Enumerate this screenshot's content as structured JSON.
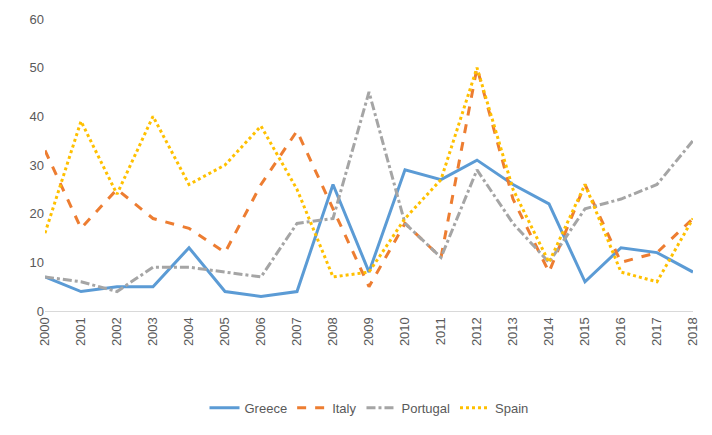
{
  "chart_data": {
    "type": "line",
    "categories": [
      "2000",
      "2001",
      "2002",
      "2003",
      "2004",
      "2005",
      "2006",
      "2007",
      "2008",
      "2009",
      "2010",
      "2011",
      "2012",
      "2013",
      "2014",
      "2015",
      "2016",
      "2017",
      "2018"
    ],
    "series": [
      {
        "name": "Greece",
        "color": "#5b9bd5",
        "line_style": "solid",
        "values": [
          7,
          4,
          5,
          5,
          13,
          4,
          3,
          4,
          26,
          8,
          29,
          27,
          31,
          26,
          22,
          6,
          13,
          12,
          8
        ]
      },
      {
        "name": "Italy",
        "color": "#ed7d31",
        "line_style": "dash",
        "values": [
          33,
          17,
          25,
          19,
          17,
          12,
          26,
          37,
          21,
          5,
          18,
          11,
          50,
          23,
          8,
          26,
          10,
          12,
          19
        ]
      },
      {
        "name": "Portugal",
        "color": "#a5a5a5",
        "line_style": "dashdot",
        "values": [
          7,
          6,
          4,
          9,
          9,
          8,
          7,
          18,
          19,
          45,
          18,
          11,
          29,
          18,
          10,
          21,
          23,
          26,
          35
        ]
      },
      {
        "name": "Spain",
        "color": "#ffc000",
        "line_style": "dot",
        "values": [
          16,
          39,
          24,
          40,
          26,
          30,
          38,
          25,
          7,
          8,
          19,
          27,
          50,
          25,
          10,
          26,
          8,
          6,
          19
        ]
      }
    ],
    "ylim": [
      0,
      60
    ],
    "yticks": [
      0,
      10,
      20,
      30,
      40,
      50,
      60
    ],
    "grid": false,
    "legend": "bottom"
  }
}
